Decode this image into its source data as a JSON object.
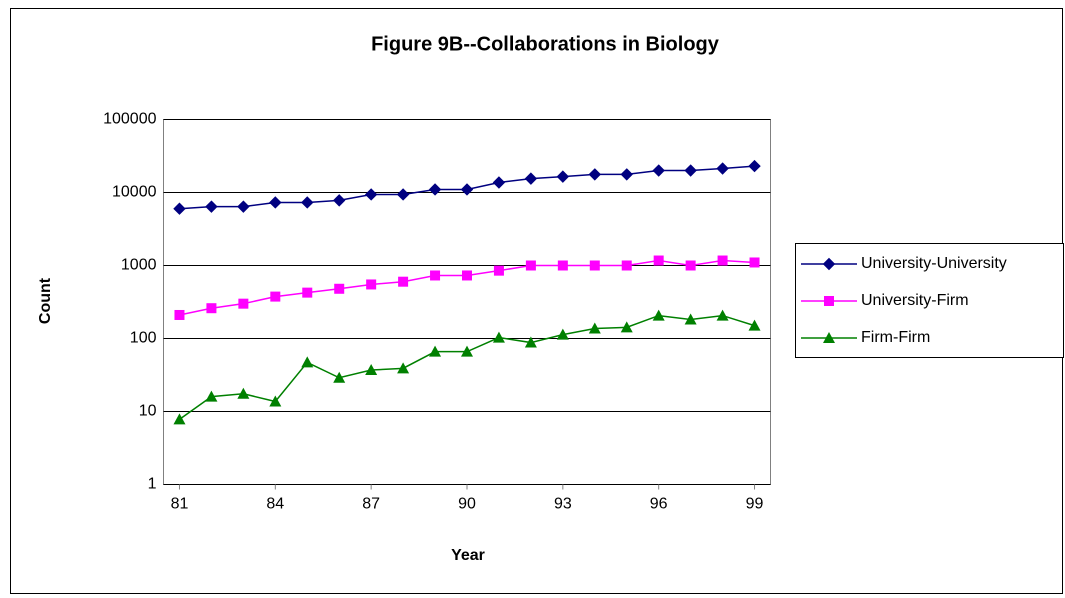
{
  "chart_data": {
    "type": "line",
    "title": "Figure 9B--Collaborations in Biology",
    "x_label": "Year",
    "y_label": "Count",
    "x": [
      81,
      82,
      83,
      84,
      85,
      86,
      87,
      88,
      89,
      90,
      91,
      92,
      93,
      94,
      95,
      96,
      97,
      98,
      99
    ],
    "xlim": [
      80.5,
      99.5
    ],
    "xticks": [
      81,
      84,
      87,
      90,
      93,
      96,
      99
    ],
    "ylim": [
      1,
      100000
    ],
    "yticks": [
      1,
      10,
      100,
      1000,
      10000,
      100000
    ],
    "log_y": true,
    "grid": true,
    "legend": "right",
    "series": [
      {
        "name": "University-University",
        "color": "#000080",
        "values": [
          6000,
          6400,
          6400,
          7300,
          7300,
          7800,
          9400,
          9400,
          11000,
          11000,
          13700,
          15500,
          16500,
          17700,
          17700,
          20000,
          20000,
          21300,
          23000
        ]
      },
      {
        "name": "University-Firm",
        "color": "#ff00ff",
        "values": [
          210,
          260,
          300,
          375,
          425,
          480,
          550,
          600,
          730,
          730,
          850,
          1000,
          1000,
          1000,
          1000,
          1170,
          1000,
          1170,
          1100
        ]
      },
      {
        "name": "Firm-Firm",
        "color": "#008000",
        "values": [
          7.8,
          16,
          17.5,
          13.7,
          47,
          29,
          37,
          39,
          66,
          66,
          103,
          88,
          113,
          137,
          142,
          206,
          182,
          206,
          150
        ]
      }
    ]
  }
}
